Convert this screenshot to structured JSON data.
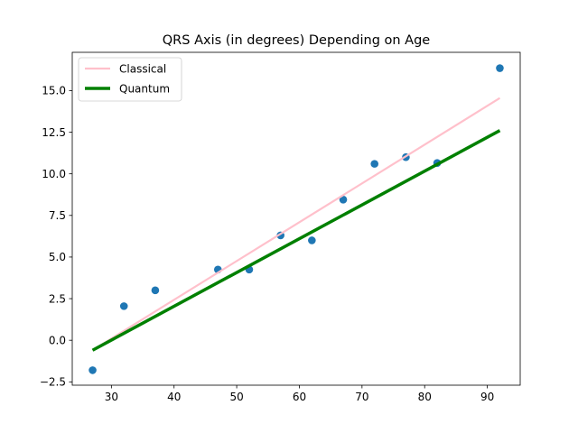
{
  "chart_data": {
    "type": "scatter",
    "title": "QRS Axis (in degrees) Depending on Age",
    "xlabel": "",
    "ylabel": "",
    "xlim": [
      23.75,
      95.25
    ],
    "ylim": [
      -2.7,
      17.3
    ],
    "x_ticks": [
      30,
      40,
      50,
      60,
      70,
      80,
      90
    ],
    "x_tick_labels": [
      "30",
      "40",
      "50",
      "60",
      "70",
      "80",
      "90"
    ],
    "y_ticks": [
      -2.5,
      0.0,
      2.5,
      5.0,
      7.5,
      10.0,
      12.5,
      15.0
    ],
    "y_tick_labels": [
      "−2.5",
      "0.0",
      "2.5",
      "5.0",
      "7.5",
      "10.0",
      "12.5",
      "15.0"
    ],
    "grid": false,
    "legend_position": "upper-left",
    "points": {
      "color": "#1f77b4",
      "x": [
        27,
        32,
        37,
        47,
        52,
        57,
        62,
        67,
        72,
        77,
        82,
        92
      ],
      "y": [
        -1.8,
        2.05,
        3.0,
        4.25,
        4.25,
        6.3,
        6.0,
        8.45,
        10.6,
        11.0,
        10.65,
        16.35
      ]
    },
    "series": [
      {
        "name": "Classical",
        "color": "#ffc0cb",
        "width": 2.2,
        "x": [
          27,
          92
        ],
        "y": [
          -0.6,
          14.55
        ]
      },
      {
        "name": "Quantum",
        "color": "#008000",
        "width": 3.5,
        "x": [
          27,
          92
        ],
        "y": [
          -0.6,
          12.6
        ]
      }
    ]
  }
}
